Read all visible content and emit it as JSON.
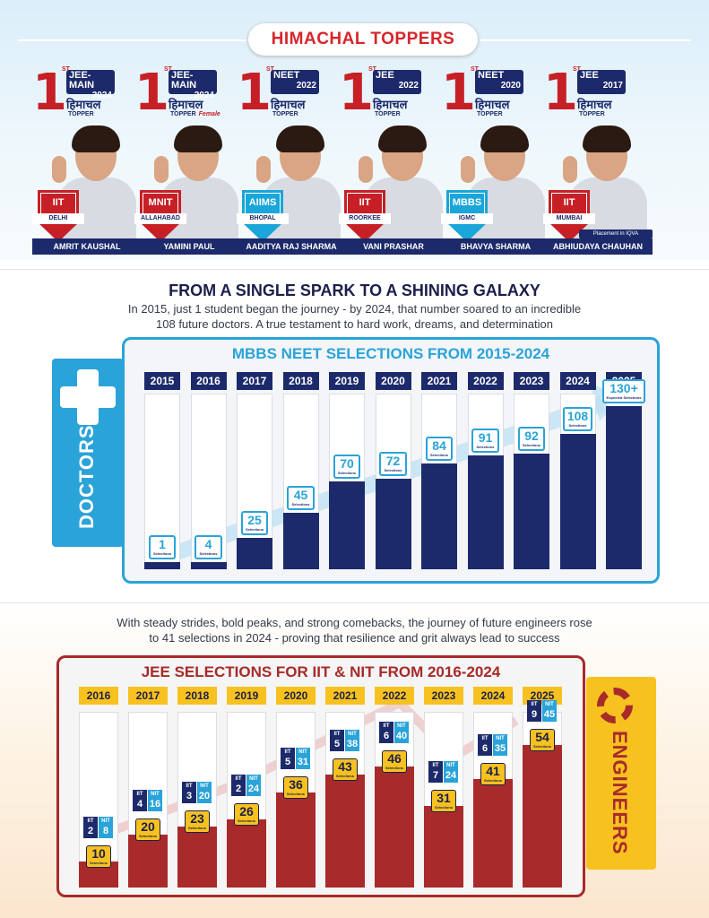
{
  "toppers": {
    "title": "HIMACHAL TOPPERS",
    "items": [
      {
        "rank": "1",
        "rank_suffix": "ST",
        "exam": "JEE-MAIN",
        "year": "2024",
        "state": "हिमाचल",
        "label": "TOPPER",
        "extra": "",
        "institute": "IIT",
        "city": "DELHI",
        "name": "AMRIT KAUSHAL",
        "shield": "red"
      },
      {
        "rank": "1",
        "rank_suffix": "ST",
        "exam": "JEE-MAIN",
        "year": "2024",
        "state": "हिमाचल",
        "label": "TOPPER",
        "extra": "Female",
        "institute": "MNIT",
        "city": "ALLAHABAD",
        "name": "YAMINI PAUL",
        "shield": "red"
      },
      {
        "rank": "1",
        "rank_suffix": "ST",
        "exam": "NEET",
        "year": "2022",
        "state": "हिमाचल",
        "label": "TOPPER",
        "extra": "",
        "institute": "AIIMS",
        "city": "BHOPAL",
        "name": "AADITYA RAJ SHARMA",
        "shield": "blue"
      },
      {
        "rank": "1",
        "rank_suffix": "ST",
        "exam": "JEE",
        "year": "2022",
        "state": "हिमाचल",
        "label": "TOPPER",
        "extra": "",
        "institute": "IIT",
        "city": "ROORKEE",
        "name": "VANI PRASHAR",
        "shield": "red"
      },
      {
        "rank": "1",
        "rank_suffix": "ST",
        "exam": "NEET",
        "year": "2020",
        "state": "हिमाचल",
        "label": "TOPPER",
        "extra": "",
        "institute": "MBBS",
        "city": "IGMC",
        "name": "BHAVYA SHARMA",
        "shield": "blue"
      },
      {
        "rank": "1",
        "rank_suffix": "ST",
        "exam": "JEE",
        "year": "2017",
        "state": "हिमाचल",
        "label": "TOPPER",
        "extra": "",
        "institute": "IIT",
        "city": "MUMBAI",
        "name": "ABHIUDAYA CHAUHAN",
        "shield": "red",
        "placement": "Placement in IQVA"
      }
    ]
  },
  "doctors": {
    "heading": "FROM A SINGLE SPARK TO A SHINING GALAXY",
    "text_line1": "In 2015, just 1 student began the journey - by 2024, that number soared to an incredible",
    "text_line2": "108 future doctors. A true testament to hard work, dreams, and determination",
    "side_label": "DOCTORS"
  },
  "engineers": {
    "text_line1": "With steady strides, bold peaks, and strong comebacks, the journey of future engineers rose",
    "text_line2": "to 41 selections in 2024 - proving that resilience and grit always lead to success",
    "side_label": "ENGINEERS"
  },
  "colors": {
    "navy": "#1c2a6b",
    "sky": "#2aa3d8",
    "maroon": "#a82a2a",
    "gold": "#f7c120",
    "red": "#c62026"
  },
  "chart_data": [
    {
      "type": "bar",
      "title": "MBBS NEET SELECTIONS FROM 2015-2024",
      "categories": [
        "2015",
        "2016",
        "2017",
        "2018",
        "2019",
        "2020",
        "2021",
        "2022",
        "2023",
        "2024",
        "2025"
      ],
      "values": [
        1,
        4,
        25,
        45,
        70,
        72,
        84,
        91,
        92,
        108,
        130
      ],
      "value_labels": [
        "1",
        "4",
        "25",
        "45",
        "70",
        "72",
        "84",
        "91",
        "92",
        "108",
        "130+"
      ],
      "caption": "Selections",
      "last_caption": "Expected Selections",
      "ylim": [
        0,
        140
      ]
    },
    {
      "type": "bar",
      "title": "JEE SELECTIONS FOR IIT & NIT FROM 2016-2024",
      "categories": [
        "2016",
        "2017",
        "2018",
        "2019",
        "2020",
        "2021",
        "2022",
        "2023",
        "2024",
        "2025"
      ],
      "values": [
        10,
        20,
        23,
        26,
        36,
        43,
        46,
        31,
        41,
        54
      ],
      "iit": [
        2,
        4,
        3,
        2,
        5,
        5,
        6,
        7,
        6,
        9
      ],
      "nit": [
        8,
        16,
        20,
        24,
        31,
        38,
        40,
        24,
        35,
        45
      ],
      "split_labels": {
        "iit": "IIT",
        "nit": "NIT"
      },
      "caption": "Selections",
      "ylim": [
        0,
        70
      ]
    }
  ]
}
